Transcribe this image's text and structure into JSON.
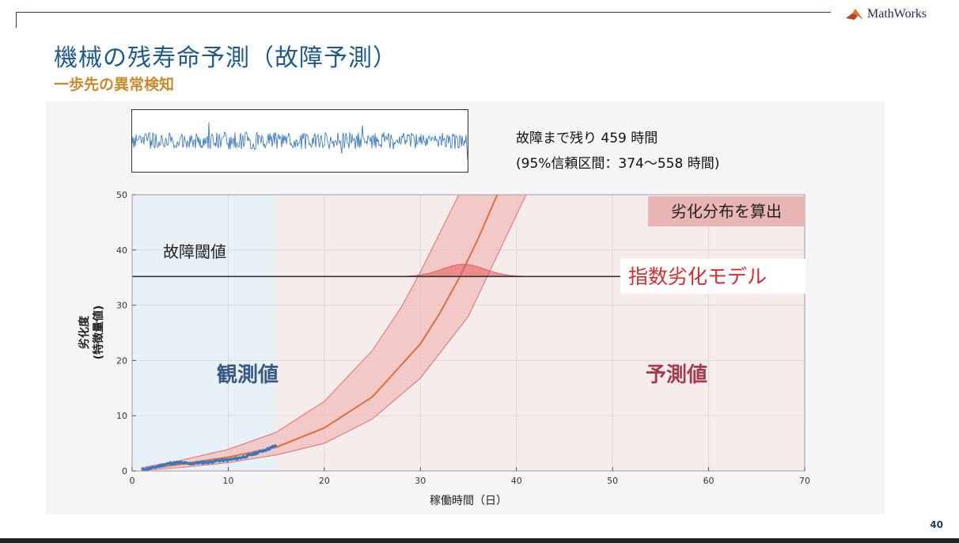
{
  "slide": {
    "title": "機械の残寿命予測（故障予測）",
    "subtitle": "一歩先の異常検知",
    "brand": "MathWorks",
    "page_number": "40",
    "rul_text_1": "故障まで残り 459 時間",
    "rul_text_2": "(95%信頼区間：374～558 時間)"
  },
  "colors": {
    "title": "#1f5a8a",
    "subtitle": "#c78a2d",
    "observed_region": "#e9f1f8",
    "predicted_region": "#f7ecec",
    "band_fill": "#f2bcbc",
    "prediction_line": "#d9713f",
    "observed_line": "#3b78c0",
    "threshold_line": "#333333",
    "density": "#e35a5a",
    "signal": "#2e6fb8",
    "model_label_text": "#d32f2f"
  },
  "chart_data": {
    "type": "line",
    "xlabel": "稼働時間（日）",
    "ylabel": "劣化度\n(特徴量値)",
    "xlim": [
      0,
      70
    ],
    "ylim": [
      0,
      50
    ],
    "xticks": [
      0,
      10,
      20,
      30,
      40,
      50,
      60,
      70
    ],
    "yticks": [
      0,
      10,
      20,
      30,
      40,
      50
    ],
    "grid": true,
    "threshold": {
      "label": "故障閾値",
      "value": 35.2
    },
    "observed_until": 15,
    "regions": [
      {
        "label": "観測値",
        "x_range": [
          0,
          15
        ]
      },
      {
        "label": "予測値",
        "x_range": [
          15,
          70
        ]
      }
    ],
    "annotations": [
      {
        "text": "劣化分布を算出"
      },
      {
        "text": "指数劣化モデル"
      }
    ],
    "observed_series": {
      "x": [
        1,
        2,
        3,
        4,
        5,
        6,
        7,
        8,
        9,
        10,
        11,
        12,
        13,
        14,
        15
      ],
      "y": [
        0.2,
        0.5,
        1.0,
        1.4,
        1.5,
        1.3,
        1.5,
        1.6,
        1.9,
        2.0,
        2.3,
        2.7,
        3.3,
        3.9,
        4.6
      ]
    },
    "prediction_series": {
      "x": [
        1,
        5,
        10,
        15,
        20,
        25,
        30,
        32,
        34,
        36,
        38
      ],
      "y": [
        0.3,
        1.2,
        2.5,
        4.3,
        7.8,
        13.4,
        23.0,
        28.5,
        34.8,
        42.0,
        50.0
      ]
    },
    "band_upper": {
      "x": [
        1,
        5,
        10,
        15,
        20,
        25,
        28,
        30,
        32,
        34
      ],
      "y": [
        0.6,
        1.9,
        3.9,
        7.0,
        12.6,
        21.8,
        29.6,
        36.0,
        43.0,
        50.0
      ]
    },
    "band_lower": {
      "x": [
        1,
        5,
        10,
        15,
        20,
        25,
        30,
        35,
        38,
        41
      ],
      "y": [
        0.1,
        0.6,
        1.5,
        2.9,
        5.0,
        9.4,
        16.8,
        28.0,
        39.0,
        50.0
      ]
    },
    "failure_density": {
      "mean": 34.5,
      "sd": 2.2,
      "peak_height": 2.2
    }
  }
}
